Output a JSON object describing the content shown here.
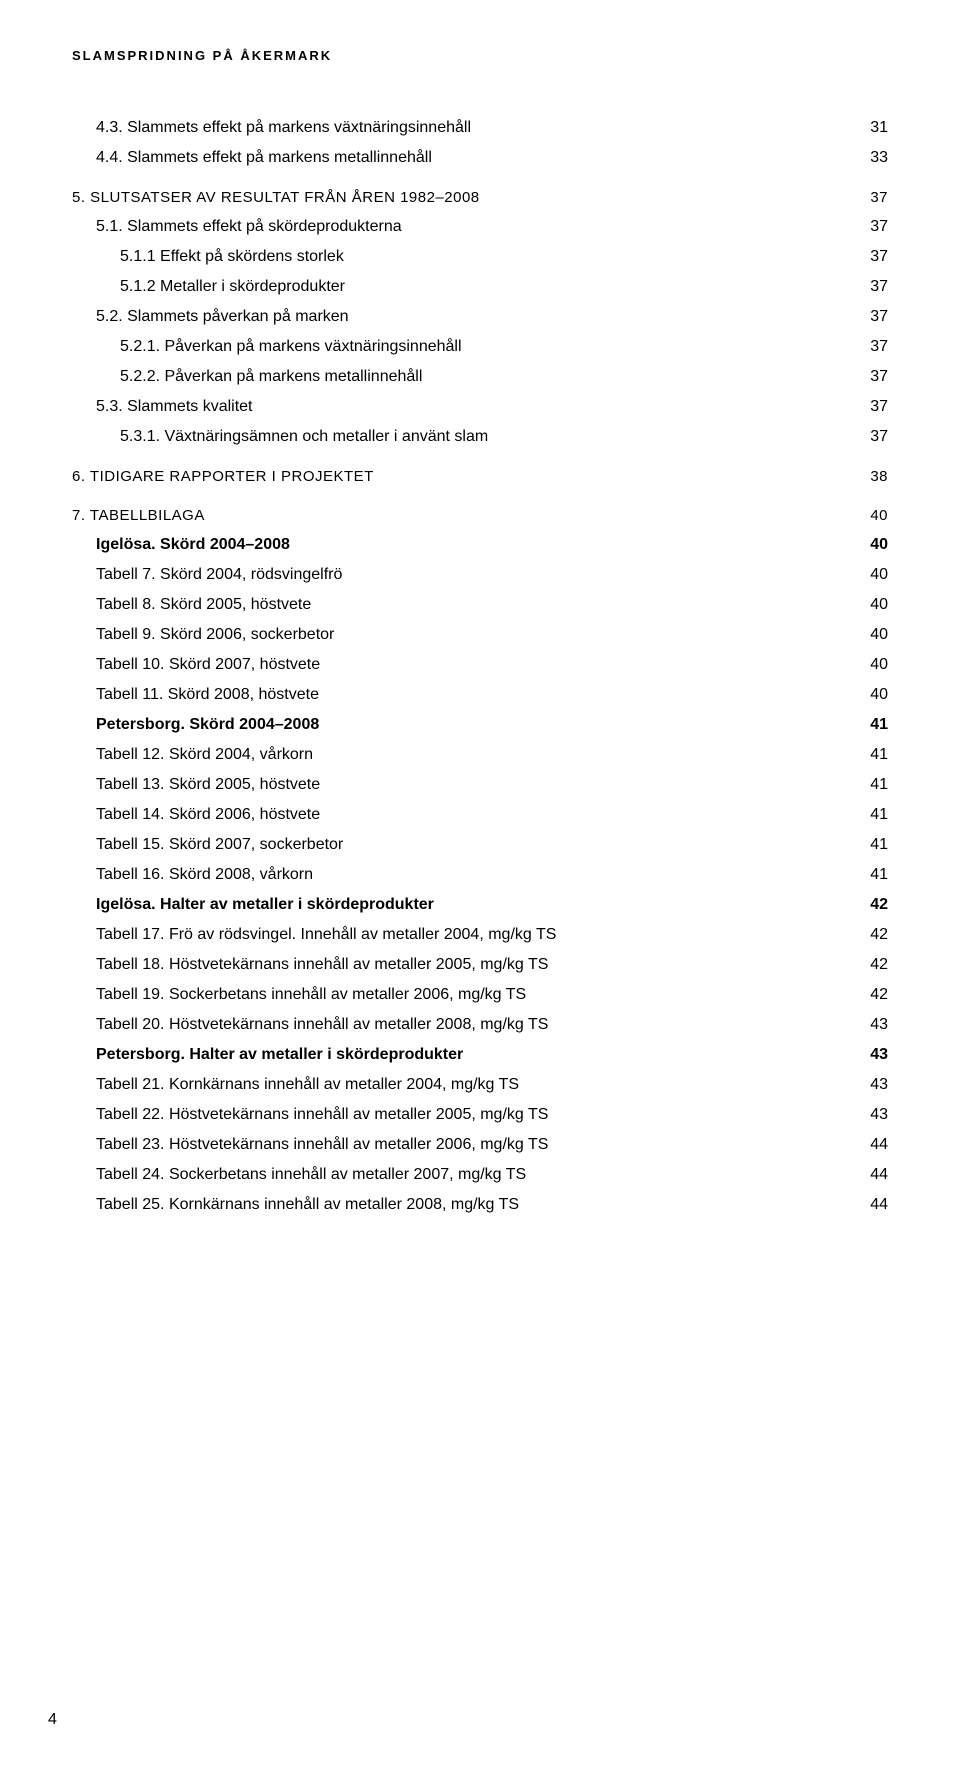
{
  "document": {
    "running_head": "SLAMSPRIDNING PÅ ÅKERMARK",
    "page_number": "4",
    "text_color": "#000000",
    "background_color": "#ffffff",
    "fontsize_body": 16,
    "fontsize_runhead": 13,
    "letter_spacing_runhead": 2
  },
  "toc": {
    "items": [
      {
        "level": 2,
        "label": "4.3. Slammets effekt på markens växtnäringsinnehåll",
        "page": "31"
      },
      {
        "level": 2,
        "label": "4.4. Slammets effekt på markens metallinnehåll",
        "page": "33"
      },
      {
        "level": 1,
        "label": "5. SLUTSATSER AV RESULTAT FRÅN ÅREN 1982–2008",
        "page": "37",
        "section": true
      },
      {
        "level": 2,
        "label": "5.1. Slammets effekt på skördeprodukterna",
        "page": "37"
      },
      {
        "level": 3,
        "label": "5.1.1 Effekt på skördens storlek",
        "page": "37"
      },
      {
        "level": 3,
        "label": "5.1.2 Metaller i skördeprodukter",
        "page": "37"
      },
      {
        "level": 2,
        "label": "5.2. Slammets påverkan på marken",
        "page": "37"
      },
      {
        "level": 3,
        "label": "5.2.1. Påverkan på markens växtnäringsinnehåll",
        "page": "37"
      },
      {
        "level": 3,
        "label": "5.2.2. Påverkan på markens metallinnehåll",
        "page": "37"
      },
      {
        "level": 2,
        "label": "5.3. Slammets kvalitet",
        "page": "37"
      },
      {
        "level": 3,
        "label": "5.3.1. Växtnäringsämnen och metaller i använt slam",
        "page": "37"
      },
      {
        "level": 1,
        "label": "6. TIDIGARE RAPPORTER I PROJEKTET",
        "page": "38",
        "section": true
      },
      {
        "level": 1,
        "label": "7. TABELLBILAGA",
        "page": "40",
        "section": true
      },
      {
        "level": 2,
        "bold": true,
        "label": "Igelösa. Skörd 2004–2008",
        "page": "40"
      },
      {
        "level": 2,
        "label": "Tabell 7. Skörd 2004, rödsvingelfrö",
        "page": "40"
      },
      {
        "level": 2,
        "label": "Tabell 8. Skörd 2005, höstvete",
        "page": "40"
      },
      {
        "level": 2,
        "label": "Tabell 9. Skörd 2006, sockerbetor",
        "page": "40"
      },
      {
        "level": 2,
        "label": "Tabell 10. Skörd 2007, höstvete",
        "page": "40"
      },
      {
        "level": 2,
        "label": "Tabell 11. Skörd 2008, höstvete",
        "page": "40"
      },
      {
        "level": 2,
        "bold": true,
        "label": "Petersborg. Skörd 2004–2008",
        "page": "41"
      },
      {
        "level": 2,
        "label": "Tabell 12. Skörd 2004, vårkorn",
        "page": "41"
      },
      {
        "level": 2,
        "label": "Tabell 13. Skörd 2005, höstvete",
        "page": "41"
      },
      {
        "level": 2,
        "label": "Tabell 14. Skörd 2006, höstvete",
        "page": "41"
      },
      {
        "level": 2,
        "label": "Tabell 15. Skörd 2007, sockerbetor",
        "page": "41"
      },
      {
        "level": 2,
        "label": "Tabell 16. Skörd 2008, vårkorn",
        "page": "41"
      },
      {
        "level": 2,
        "bold": true,
        "label": "Igelösa. Halter av metaller i skördeprodukter",
        "page": "42"
      },
      {
        "level": 2,
        "label": "Tabell 17. Frö av rödsvingel. Innehåll av metaller 2004, mg/kg TS",
        "page": "42"
      },
      {
        "level": 2,
        "label": "Tabell 18. Höstvetekärnans innehåll av metaller 2005, mg/kg TS",
        "page": "42"
      },
      {
        "level": 2,
        "label": "Tabell 19. Sockerbetans innehåll av metaller 2006, mg/kg TS",
        "page": "42"
      },
      {
        "level": 2,
        "label": "Tabell 20. Höstvetekärnans innehåll av metaller 2008, mg/kg TS",
        "page": "43"
      },
      {
        "level": 2,
        "bold": true,
        "label": "Petersborg. Halter av metaller i skördeprodukter",
        "page": "43"
      },
      {
        "level": 2,
        "label": "Tabell 21. Kornkärnans innehåll av metaller 2004, mg/kg TS",
        "page": "43"
      },
      {
        "level": 2,
        "label": "Tabell 22. Höstvetekärnans innehåll av metaller 2005, mg/kg TS",
        "page": "43"
      },
      {
        "level": 2,
        "label": "Tabell 23. Höstvetekärnans innehåll av metaller 2006, mg/kg TS",
        "page": "44"
      },
      {
        "level": 2,
        "label": "Tabell 24. Sockerbetans innehåll av metaller 2007, mg/kg TS",
        "page": "44"
      },
      {
        "level": 2,
        "label": "Tabell 25. Kornkärnans innehåll av metaller 2008, mg/kg TS",
        "page": "44"
      }
    ]
  }
}
